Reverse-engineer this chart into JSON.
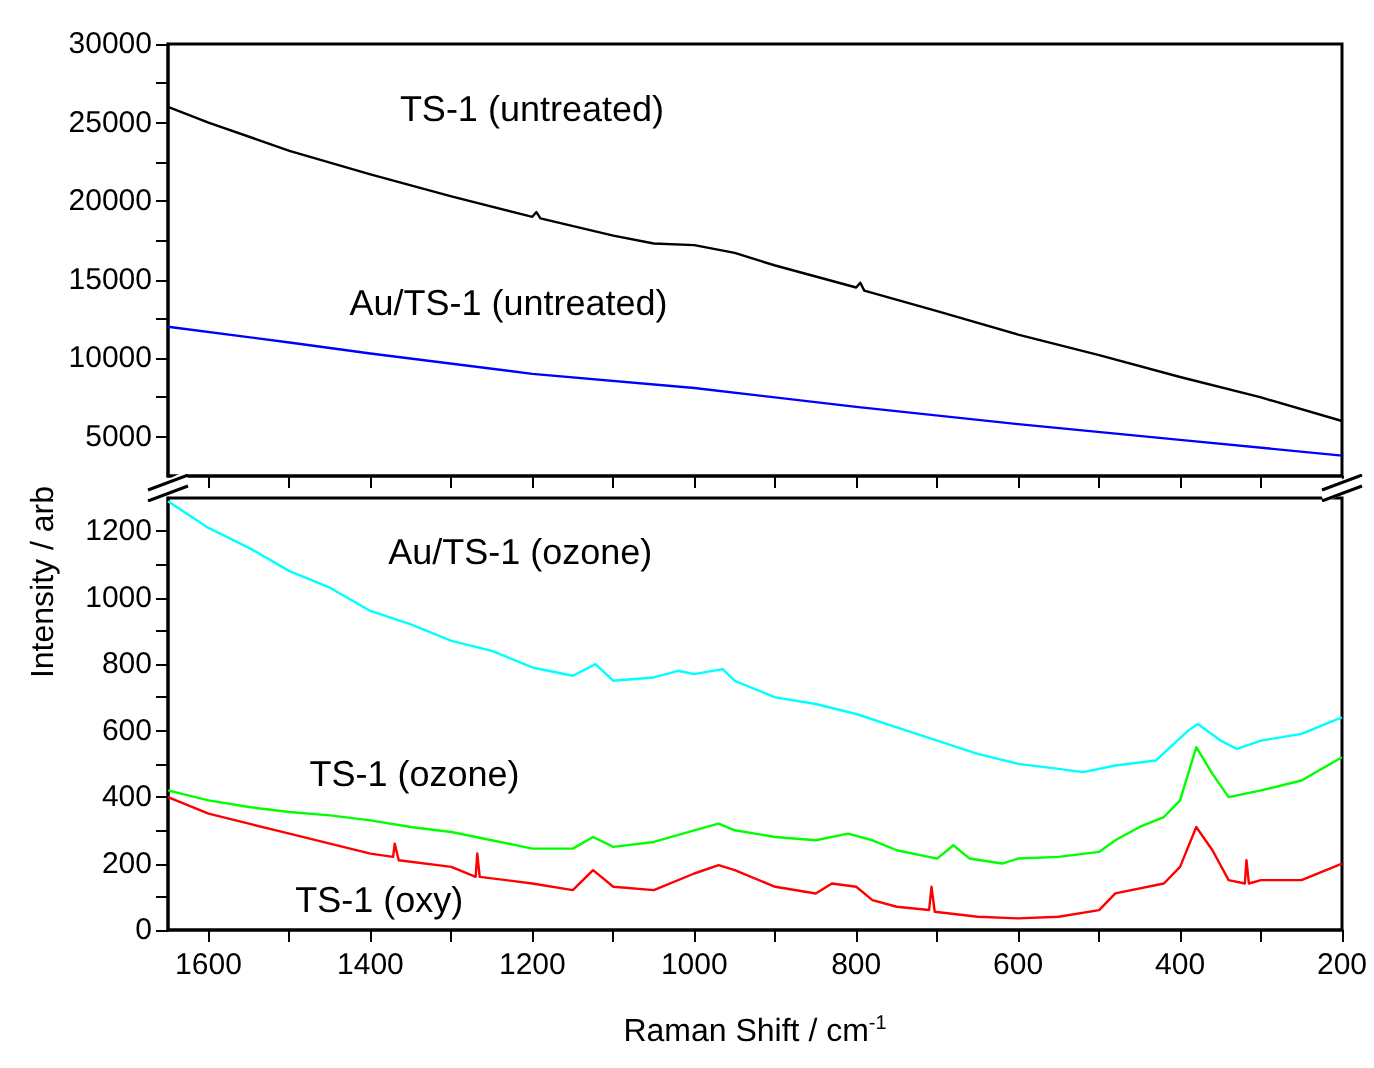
{
  "chart_data": [
    {
      "type": "line",
      "ylabel": "Intensity / arb",
      "xlim": [
        1650,
        200
      ],
      "ylim": [
        2500,
        30000
      ],
      "xticks": [
        1600,
        {
          "value": 1500,
          "label": null
        },
        1400,
        {
          "value": 1300,
          "label": null
        },
        1200,
        {
          "value": 1100,
          "label": null
        },
        1000,
        {
          "value": 900,
          "label": null
        },
        800,
        {
          "value": 700,
          "label": null
        },
        600,
        {
          "value": 500,
          "label": null
        },
        400,
        {
          "value": 300,
          "label": null
        },
        200
      ],
      "yticks": [
        5000,
        {
          "value": 7500,
          "label": null
        },
        10000,
        {
          "value": 12500,
          "label": null
        },
        15000,
        {
          "value": 17500,
          "label": null
        },
        20000,
        {
          "value": 22500,
          "label": null
        },
        25000,
        {
          "value": 27500,
          "label": null
        },
        30000
      ],
      "tick_labels": "y",
      "grid": false,
      "legend": false,
      "marker": "none",
      "line_style": "solid",
      "series": [
        {
          "name": "TS-1 (untreated)",
          "color": "#000000",
          "x": [
            1650,
            1600,
            1500,
            1400,
            1300,
            1200,
            1195,
            1190,
            1100,
            1050,
            1000,
            950,
            900,
            800,
            795,
            790,
            700,
            600,
            500,
            400,
            300,
            200
          ],
          "values": [
            26000,
            25000,
            23200,
            21700,
            20300,
            19000,
            19300,
            18900,
            17800,
            17300,
            17200,
            16700,
            15900,
            14500,
            14800,
            14300,
            13000,
            11500,
            10200,
            8800,
            7500,
            6000
          ]
        },
        {
          "name": "Au/TS-1 (untreated)",
          "color": "#0000ff",
          "x": [
            1650,
            1500,
            1400,
            1200,
            1000,
            800,
            600,
            400,
            200
          ],
          "values": [
            12000,
            11000,
            10300,
            9000,
            8100,
            6900,
            5800,
            4800,
            3800
          ]
        }
      ]
    },
    {
      "type": "line",
      "xlabel": "Raman Shift / cm$^{-1}$",
      "xlim": [
        1650,
        200
      ],
      "ylim": [
        0,
        1300
      ],
      "xticks": [
        1600,
        {
          "value": 1500,
          "label": null
        },
        1400,
        {
          "value": 1300,
          "label": null
        },
        1200,
        {
          "value": 1100,
          "label": null
        },
        1000,
        {
          "value": 900,
          "label": null
        },
        800,
        {
          "value": 700,
          "label": null
        },
        600,
        {
          "value": 500,
          "label": null
        },
        400,
        {
          "value": 300,
          "label": null
        },
        200
      ],
      "yticks": [
        0,
        {
          "value": 100,
          "label": null
        },
        200,
        {
          "value": 300,
          "label": null
        },
        400,
        {
          "value": 500,
          "label": null
        },
        600,
        {
          "value": 700,
          "label": null
        },
        800,
        {
          "value": 900,
          "label": null
        },
        1000,
        {
          "value": 1100,
          "label": null
        },
        1200
      ],
      "grid": false,
      "legend": false,
      "marker": "none",
      "line_style": "solid",
      "series": [
        {
          "name": "Au/TS-1 (ozone)",
          "color": "#00ffff",
          "x": [
            1650,
            1600,
            1550,
            1500,
            1450,
            1400,
            1350,
            1300,
            1250,
            1200,
            1150,
            1122,
            1100,
            1050,
            1020,
            1000,
            965,
            950,
            900,
            850,
            800,
            750,
            700,
            650,
            600,
            550,
            520,
            480,
            430,
            390,
            378,
            350,
            330,
            300,
            250,
            220,
            200
          ],
          "values": [
            1290,
            1210,
            1150,
            1080,
            1030,
            960,
            920,
            870,
            840,
            790,
            765,
            800,
            750,
            760,
            780,
            770,
            785,
            750,
            700,
            680,
            650,
            610,
            570,
            530,
            500,
            485,
            475,
            495,
            510,
            600,
            620,
            570,
            545,
            570,
            590,
            620,
            640
          ]
        },
        {
          "name": "TS-1 (ozone)",
          "color": "#00ff00",
          "x": [
            1650,
            1600,
            1550,
            1500,
            1450,
            1400,
            1350,
            1300,
            1250,
            1200,
            1150,
            1125,
            1100,
            1050,
            1000,
            970,
            950,
            900,
            850,
            810,
            780,
            750,
            700,
            680,
            660,
            620,
            600,
            550,
            500,
            480,
            450,
            420,
            400,
            380,
            360,
            340,
            300,
            250,
            200
          ],
          "values": [
            420,
            390,
            370,
            355,
            345,
            330,
            310,
            295,
            270,
            245,
            245,
            280,
            250,
            265,
            300,
            320,
            300,
            280,
            270,
            290,
            270,
            240,
            215,
            255,
            215,
            200,
            215,
            220,
            235,
            270,
            310,
            340,
            390,
            550,
            470,
            400,
            420,
            450,
            520
          ]
        },
        {
          "name": "TS-1 (oxy)",
          "color": "#ff0000",
          "x": [
            1650,
            1600,
            1550,
            1500,
            1450,
            1400,
            1372,
            1370,
            1365,
            1300,
            1270,
            1268,
            1265,
            1200,
            1150,
            1125,
            1100,
            1050,
            1000,
            970,
            950,
            900,
            850,
            830,
            800,
            780,
            750,
            710,
            707,
            703,
            650,
            600,
            550,
            500,
            480,
            420,
            400,
            380,
            360,
            340,
            320,
            318,
            315,
            300,
            250,
            200
          ],
          "values": [
            400,
            350,
            320,
            290,
            260,
            230,
            220,
            260,
            210,
            190,
            160,
            230,
            160,
            140,
            120,
            180,
            130,
            120,
            170,
            195,
            180,
            130,
            110,
            140,
            130,
            90,
            70,
            60,
            130,
            55,
            40,
            35,
            40,
            60,
            110,
            140,
            190,
            310,
            240,
            150,
            140,
            210,
            140,
            150,
            150,
            200
          ]
        }
      ]
    }
  ]
}
